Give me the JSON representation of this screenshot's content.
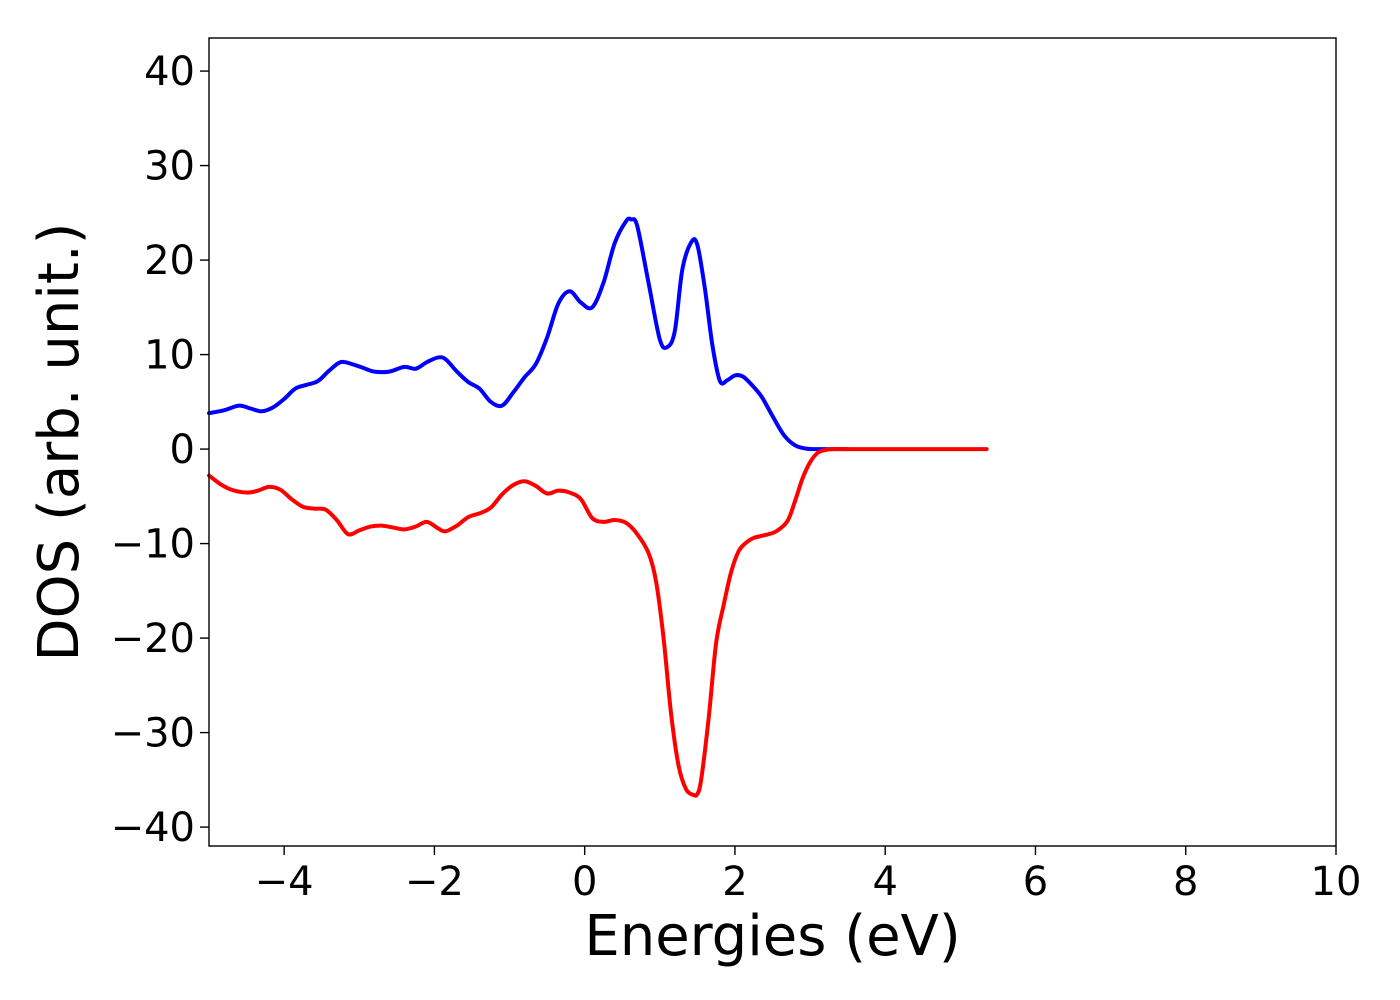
{
  "chart_data": {
    "type": "line",
    "title": "",
    "xlabel": "Energies (eV)",
    "ylabel": "DOS (arb. unit.)",
    "xlim": [
      -5,
      10
    ],
    "ylim": [
      -42,
      43.5
    ],
    "xticks": [
      -4,
      -2,
      0,
      2,
      4,
      6,
      8,
      10
    ],
    "yticks": [
      -40,
      -30,
      -20,
      -10,
      0,
      10,
      20,
      30,
      40
    ],
    "xtick_labels": [
      "−4",
      "−2",
      "0",
      "2",
      "4",
      "6",
      "8",
      "10"
    ],
    "ytick_labels": [
      "−40",
      "−30",
      "−20",
      "−10",
      "0",
      "10",
      "20",
      "30",
      "40"
    ],
    "grid": false,
    "legend": "none",
    "series": [
      {
        "color": "#0000ff",
        "x": [
          -5.0,
          -4.8,
          -4.6,
          -4.45,
          -4.3,
          -4.15,
          -4.0,
          -3.85,
          -3.7,
          -3.55,
          -3.4,
          -3.25,
          -3.1,
          -2.95,
          -2.8,
          -2.6,
          -2.4,
          -2.25,
          -2.1,
          -1.95,
          -1.85,
          -1.7,
          -1.55,
          -1.4,
          -1.25,
          -1.1,
          -0.95,
          -0.8,
          -0.65,
          -0.5,
          -0.35,
          -0.2,
          -0.05,
          0.1,
          0.25,
          0.4,
          0.55,
          0.62,
          0.7,
          0.85,
          1.0,
          1.1,
          1.2,
          1.3,
          1.42,
          1.5,
          1.6,
          1.7,
          1.8,
          1.9,
          2.0,
          2.1,
          2.2,
          2.35,
          2.5,
          2.65,
          2.8,
          2.95,
          3.1,
          3.3,
          3.5
        ],
        "y": [
          3.8,
          4.1,
          4.6,
          4.3,
          4.0,
          4.4,
          5.3,
          6.4,
          6.8,
          7.2,
          8.3,
          9.2,
          9.0,
          8.6,
          8.2,
          8.2,
          8.7,
          8.5,
          9.2,
          9.7,
          9.5,
          8.2,
          7.1,
          6.4,
          5.0,
          4.6,
          6.0,
          7.6,
          9.0,
          11.8,
          15.4,
          16.7,
          15.5,
          15.0,
          17.6,
          21.8,
          24.1,
          24.3,
          23.6,
          17.6,
          11.6,
          10.8,
          12.5,
          19.0,
          21.9,
          21.6,
          17.0,
          11.0,
          7.2,
          7.3,
          7.8,
          7.7,
          7.0,
          5.6,
          3.5,
          1.5,
          0.4,
          0.05,
          0.0,
          0.0,
          0.0
        ]
      },
      {
        "color": "#ff0000",
        "x": [
          -5.0,
          -4.85,
          -4.7,
          -4.5,
          -4.35,
          -4.2,
          -4.05,
          -3.9,
          -3.75,
          -3.6,
          -3.45,
          -3.3,
          -3.15,
          -3.0,
          -2.85,
          -2.7,
          -2.55,
          -2.4,
          -2.25,
          -2.1,
          -1.95,
          -1.85,
          -1.7,
          -1.55,
          -1.4,
          -1.25,
          -1.1,
          -0.95,
          -0.8,
          -0.65,
          -0.5,
          -0.35,
          -0.2,
          -0.05,
          0.1,
          0.25,
          0.4,
          0.55,
          0.7,
          0.85,
          0.95,
          1.05,
          1.15,
          1.25,
          1.35,
          1.45,
          1.5,
          1.55,
          1.65,
          1.75,
          1.85,
          1.95,
          2.05,
          2.15,
          2.25,
          2.4,
          2.55,
          2.7,
          2.8,
          2.9,
          3.0,
          3.1,
          3.2,
          3.3,
          3.5,
          3.8,
          4.2,
          4.6,
          5.0,
          5.35
        ],
        "y": [
          -2.8,
          -3.7,
          -4.3,
          -4.6,
          -4.4,
          -4.0,
          -4.3,
          -5.3,
          -6.1,
          -6.3,
          -6.4,
          -7.5,
          -9.0,
          -8.6,
          -8.2,
          -8.1,
          -8.3,
          -8.5,
          -8.2,
          -7.7,
          -8.4,
          -8.7,
          -8.1,
          -7.2,
          -6.8,
          -6.2,
          -4.8,
          -3.8,
          -3.4,
          -3.9,
          -4.7,
          -4.4,
          -4.6,
          -5.3,
          -7.3,
          -7.7,
          -7.5,
          -7.8,
          -9.0,
          -11.0,
          -14.0,
          -20.0,
          -28.0,
          -33.5,
          -36.0,
          -36.6,
          -36.5,
          -35.0,
          -28.5,
          -20.5,
          -16.5,
          -13.0,
          -10.8,
          -9.9,
          -9.4,
          -9.1,
          -8.7,
          -7.6,
          -5.5,
          -3.1,
          -1.4,
          -0.4,
          -0.1,
          0.0,
          0.0,
          0.0,
          0.0,
          0.0,
          0.0,
          0.0
        ]
      }
    ]
  }
}
